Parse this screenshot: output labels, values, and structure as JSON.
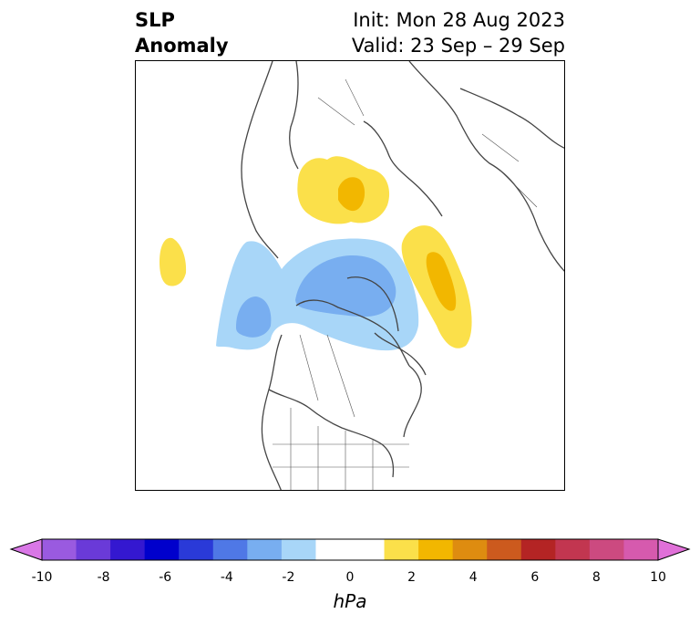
{
  "title": {
    "left_line1": "SLP",
    "left_line2": "Anomaly",
    "right_line1": "Init: Mon 28 Aug 2023",
    "right_line2": "Valid: 23 Sep – 29 Sep"
  },
  "map": {
    "projection": "north-polar-stereographic",
    "region": "Northern Hemisphere / North America & Arctic",
    "anomaly_features": [
      {
        "sign": "negative",
        "min_hpa": -4,
        "region": "Arctic Ocean / northern Canada"
      },
      {
        "sign": "negative",
        "min_hpa": -4,
        "region": "Alaska / Bering Sea"
      },
      {
        "sign": "positive",
        "max_hpa": 2,
        "region": "Scandinavia / northern Europe"
      },
      {
        "sign": "positive",
        "max_hpa": 2,
        "region": "Greenland / North Atlantic"
      },
      {
        "sign": "positive",
        "max_hpa": 2,
        "region": "North Pacific"
      }
    ]
  },
  "colorbar": {
    "units": "hPa",
    "extend": "both",
    "tick_labels": [
      "-10",
      "-8",
      "-6",
      "-4",
      "-2",
      "0",
      "2",
      "4",
      "6",
      "8",
      "10"
    ],
    "colors": [
      "#d977e6",
      "#9a5ae0",
      "#6a3ad8",
      "#3418d0",
      "#0000cc",
      "#2a3ad8",
      "#4f78e6",
      "#78aef0",
      "#a8d6f8",
      "#ffffff",
      "#ffffff",
      "#fbe04a",
      "#f2b700",
      "#de8c10",
      "#cc5a1e",
      "#b42424",
      "#c23650",
      "#cc4a80",
      "#d65aae",
      "#e070d8"
    ]
  }
}
